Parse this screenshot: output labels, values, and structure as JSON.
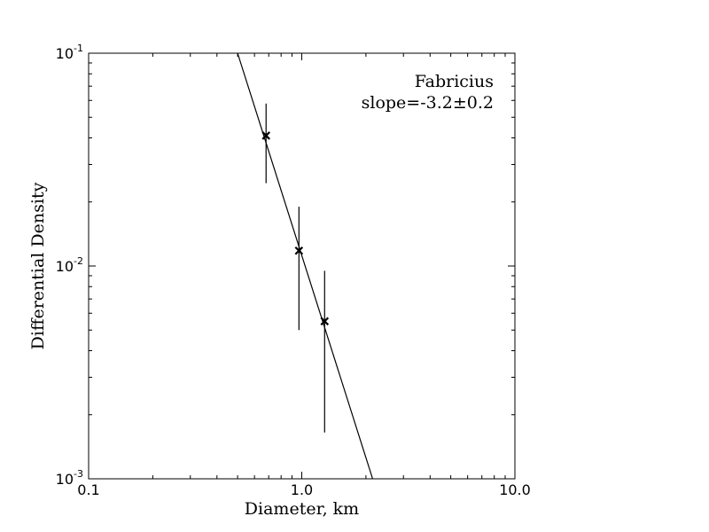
{
  "chart_data": {
    "type": "scatter",
    "xlabel": "Diameter, km",
    "ylabel": "Differential Density",
    "xscale": "log",
    "yscale": "log",
    "xlim": [
      0.1,
      10.0
    ],
    "ylim": [
      0.001,
      0.1
    ],
    "x_ticks": [
      {
        "value": 0.1,
        "label": "0.1"
      },
      {
        "value": 1.0,
        "label": "1.0"
      },
      {
        "value": 10.0,
        "label": "10.0"
      }
    ],
    "y_ticks": [
      {
        "value": 0.001,
        "base": "10",
        "exp": "-3"
      },
      {
        "value": 0.01,
        "base": "10",
        "exp": "-2"
      },
      {
        "value": 0.1,
        "base": "10",
        "exp": "-1"
      }
    ],
    "series": [
      {
        "marker": "x",
        "color": "#000000",
        "points": [
          {
            "x": 0.68,
            "y": 0.041,
            "y_low": 0.0245,
            "y_high": 0.058
          },
          {
            "x": 0.97,
            "y": 0.0118,
            "y_low": 0.005,
            "y_high": 0.019
          },
          {
            "x": 1.28,
            "y": 0.0055,
            "y_low": 0.00165,
            "y_high": 0.0095
          }
        ]
      }
    ],
    "fit_line": {
      "slope": -3.2,
      "points": [
        {
          "x": 0.5,
          "y": 0.1
        },
        {
          "x": 2.15,
          "y": 0.001
        }
      ]
    },
    "annotation": {
      "lines": [
        "Fabricius",
        "slope=-3.2±0.2"
      ],
      "placement": "top-right"
    },
    "grid": false
  }
}
